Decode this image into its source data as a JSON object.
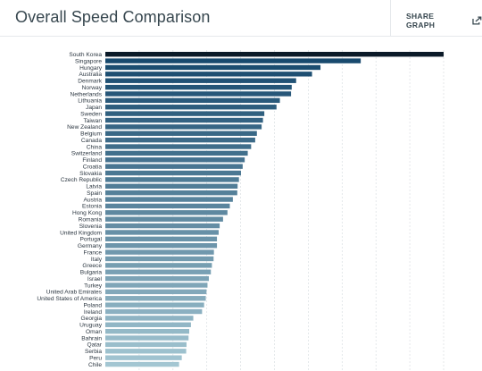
{
  "header": {
    "title": "Overall Speed Comparison",
    "share_label": "SHARE GRAPH"
  },
  "colors": {
    "top_bar": "#0b1a28",
    "gradient_start": "#184a6e",
    "gradient_end": "#a3c6d2",
    "grid": "#d9dee2"
  },
  "chart_data": {
    "type": "bar",
    "orientation": "horizontal",
    "title": "Overall Speed Comparison",
    "xlabel": "",
    "ylabel": "",
    "xlim": [
      0,
      100
    ],
    "grid": true,
    "legend": "none",
    "categories": [
      "South Korea",
      "Singapore",
      "Hungary",
      "Australia",
      "Denmark",
      "Norway",
      "Netherlands",
      "Lithuania",
      "Japan",
      "Sweden",
      "Taiwan",
      "New Zealand",
      "Belgium",
      "Canada",
      "China",
      "Switzerland",
      "Finland",
      "Croatia",
      "Slovakia",
      "Czech Republic",
      "Latvia",
      "Spain",
      "Austria",
      "Estonia",
      "Hong Kong",
      "Romania",
      "Slovenia",
      "United Kingdom",
      "Portugal",
      "Germany",
      "France",
      "Italy",
      "Greece",
      "Bulgaria",
      "Israel",
      "Turkey",
      "United Arab Emirates",
      "United States of America",
      "Poland",
      "Ireland",
      "Georgia",
      "Uruguay",
      "Oman",
      "Bahrain",
      "Qatar",
      "Serbia",
      "Peru",
      "Chile"
    ],
    "values": [
      100,
      75.5,
      63.6,
      61.1,
      56.4,
      55.1,
      54.9,
      51.6,
      50.6,
      47.0,
      46.6,
      46.2,
      44.8,
      44.3,
      43.1,
      42.1,
      41.2,
      40.6,
      40.1,
      39.5,
      39.1,
      39.0,
      37.7,
      36.8,
      36.1,
      34.8,
      33.8,
      33.5,
      33.0,
      33.0,
      32.1,
      32.0,
      31.5,
      31.2,
      30.6,
      30.2,
      29.9,
      29.7,
      29.2,
      28.6,
      26.0,
      25.3,
      24.8,
      24.6,
      24.0,
      23.9,
      22.6,
      21.8
    ]
  }
}
